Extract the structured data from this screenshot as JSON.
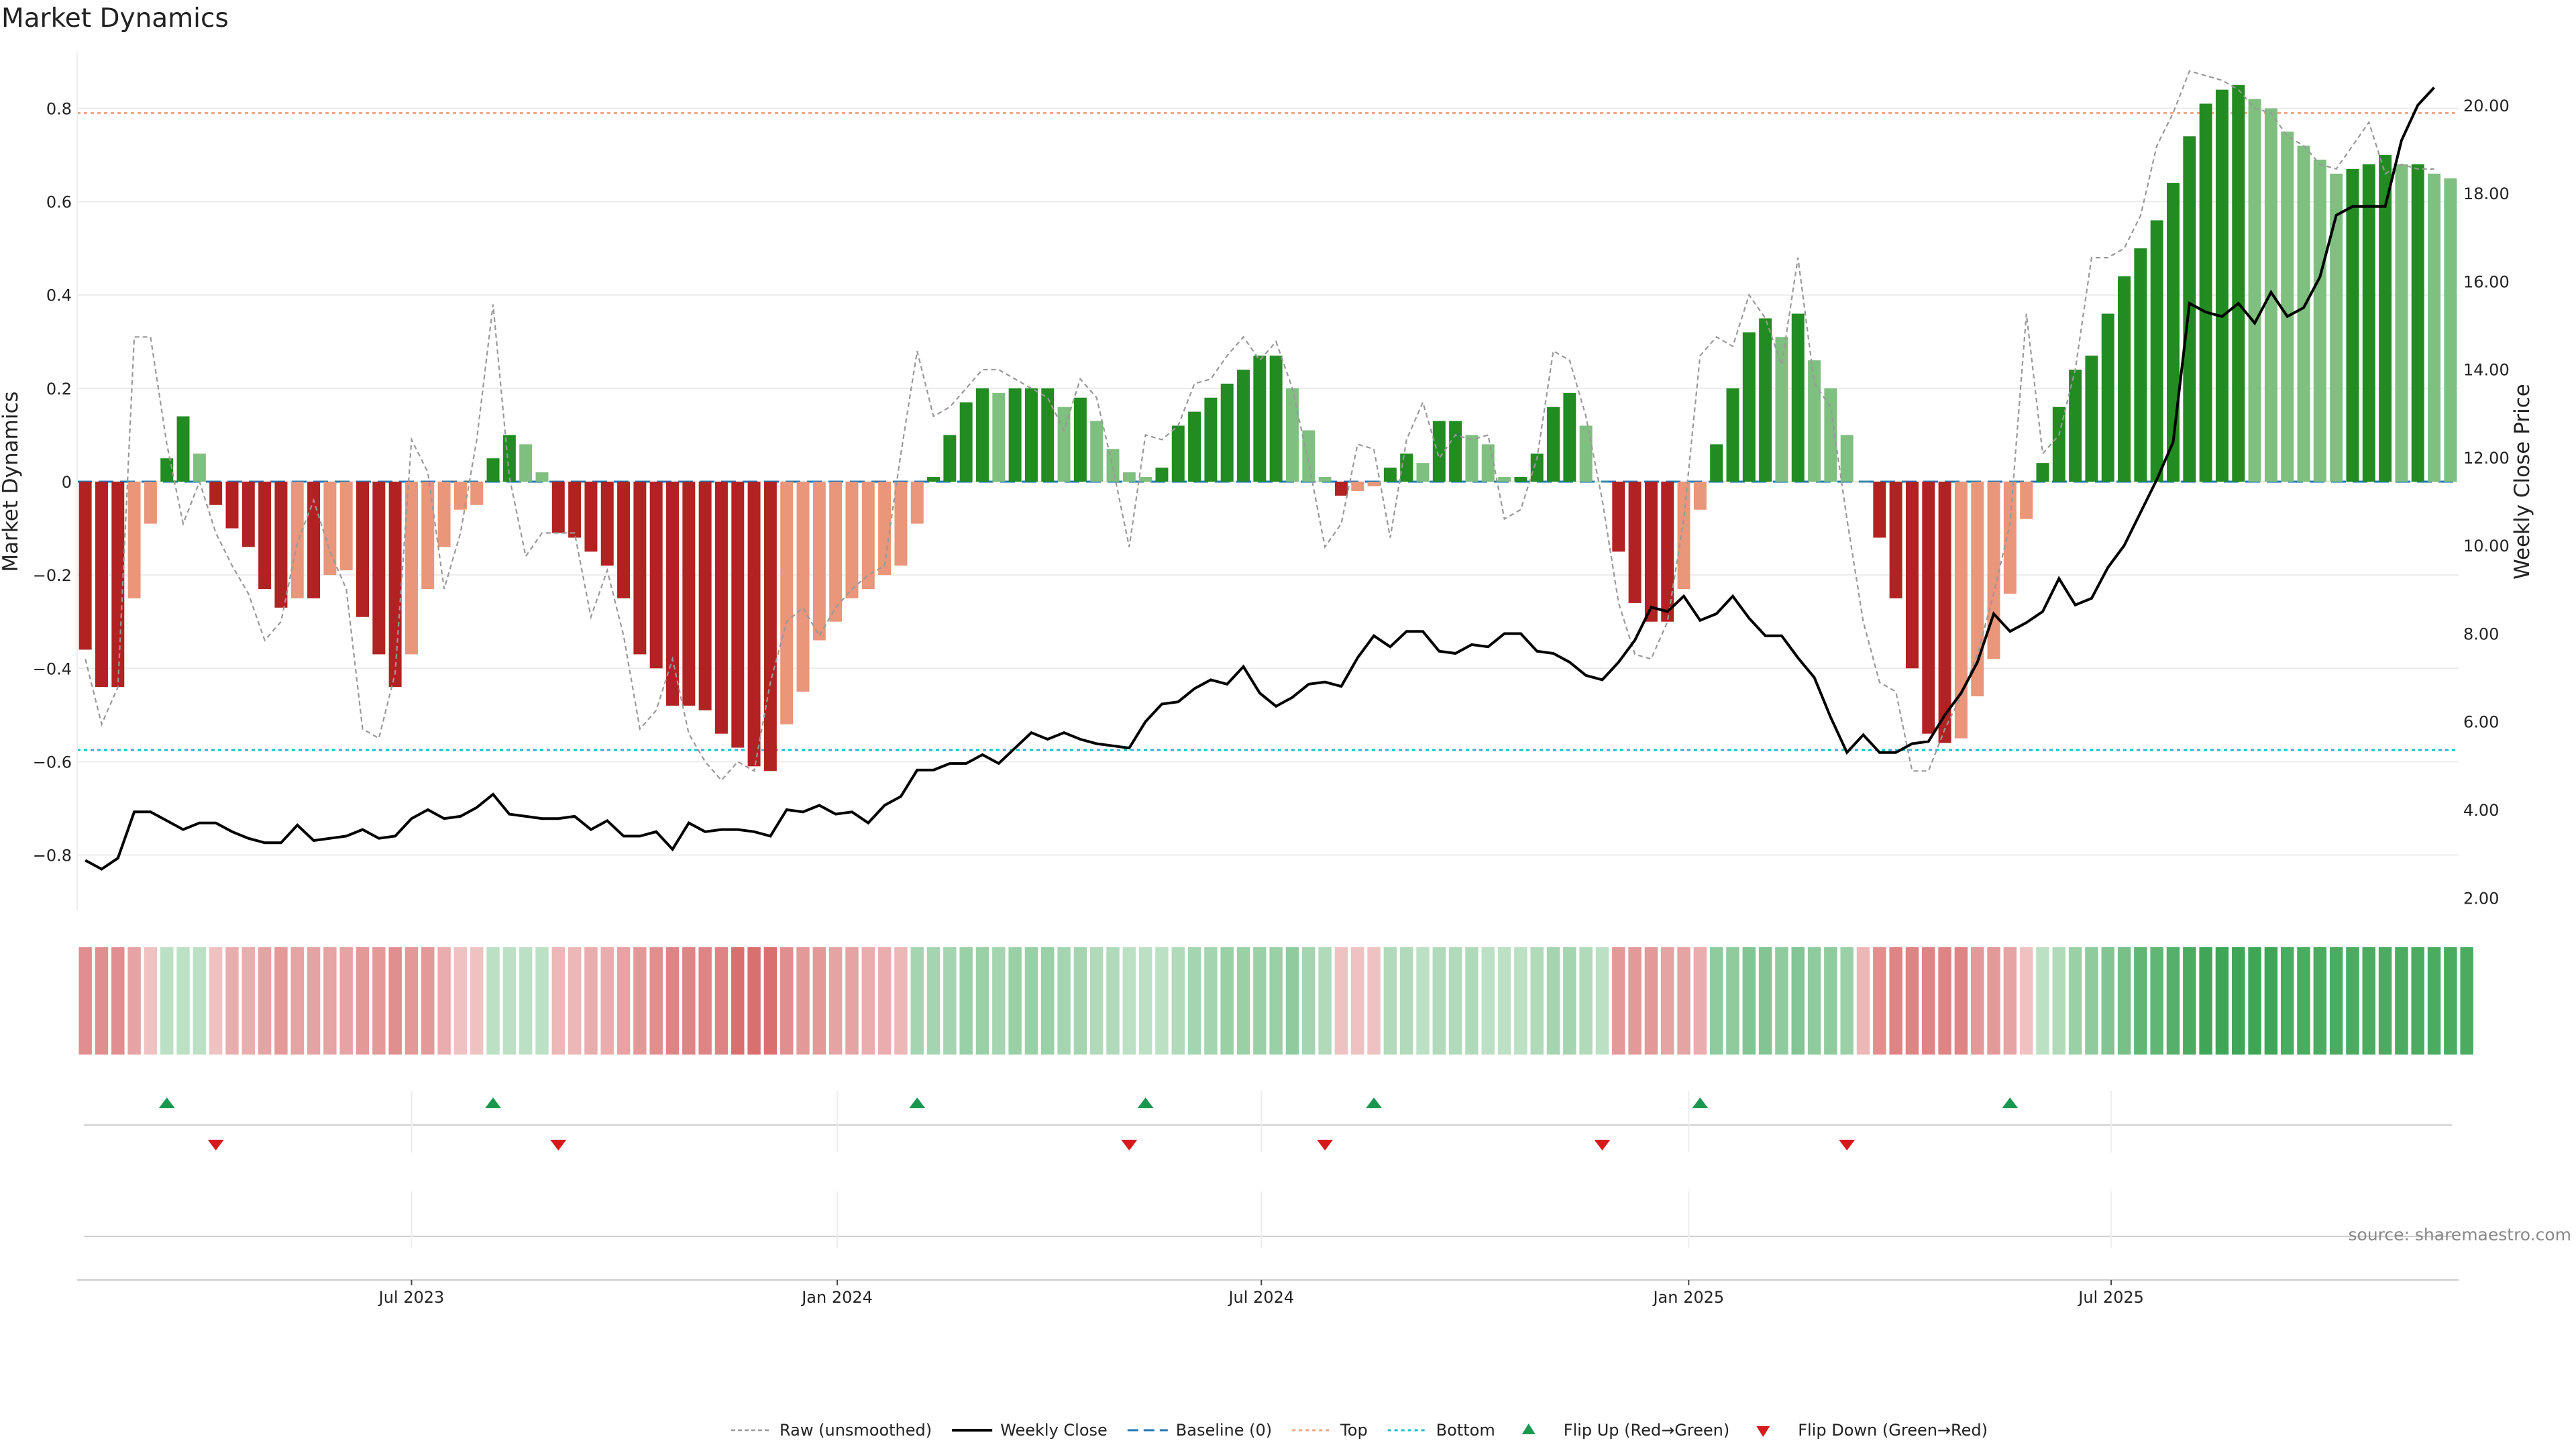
{
  "chart_data": {
    "type": "bar",
    "title": "Market Dynamics",
    "ylabel_left": "Market Dynamics",
    "ylabel_right": "Weekly Close Price",
    "ylim_left": [
      -0.92,
      0.92
    ],
    "ylim_right": [
      1.7,
      21.2
    ],
    "left_ticks": [
      {
        "value": 0.8,
        "label": "0.8"
      },
      {
        "value": 0.6,
        "label": "0.6"
      },
      {
        "value": 0.4,
        "label": "0.4"
      },
      {
        "value": 0.2,
        "label": "0.2"
      },
      {
        "value": 0,
        "label": "0"
      },
      {
        "value": -0.2,
        "label": "−0.2"
      },
      {
        "value": -0.4,
        "label": "−0.4"
      },
      {
        "value": -0.6,
        "label": "−0.6"
      },
      {
        "value": -0.8,
        "label": "−0.8"
      }
    ],
    "right_ticks": [
      {
        "value": 20,
        "label": "20.00"
      },
      {
        "value": 18,
        "label": "18.00"
      },
      {
        "value": 16,
        "label": "16.00"
      },
      {
        "value": 14,
        "label": "14.00"
      },
      {
        "value": 12,
        "label": "12.00"
      },
      {
        "value": 10,
        "label": "10.00"
      },
      {
        "value": 8,
        "label": "8.00"
      },
      {
        "value": 6,
        "label": "6.00"
      },
      {
        "value": 4,
        "label": "4.00"
      },
      {
        "value": 2,
        "label": "2.00"
      }
    ],
    "x_tick_labels": [
      {
        "week": 20.5,
        "label": "Jul 2023"
      },
      {
        "week": 46.6,
        "label": "Jan 2024"
      },
      {
        "week": 72.6,
        "label": "Jul 2024"
      },
      {
        "week": 98.8,
        "label": "Jan 2025"
      },
      {
        "week": 124.7,
        "label": "Jul 2025"
      }
    ],
    "top_level": 0.79,
    "bottom_level": -0.575,
    "baseline": 0,
    "bars": [
      -0.36,
      -0.44,
      -0.44,
      -0.25,
      -0.09,
      0.05,
      0.14,
      0.06,
      -0.05,
      -0.1,
      -0.14,
      -0.23,
      -0.27,
      -0.25,
      -0.25,
      -0.2,
      -0.19,
      -0.29,
      -0.37,
      -0.44,
      -0.37,
      -0.23,
      -0.14,
      -0.06,
      -0.05,
      0.05,
      0.1,
      0.08,
      0.02,
      -0.11,
      -0.12,
      -0.15,
      -0.18,
      -0.25,
      -0.37,
      -0.4,
      -0.48,
      -0.48,
      -0.49,
      -0.54,
      -0.57,
      -0.61,
      -0.62,
      -0.52,
      -0.45,
      -0.34,
      -0.3,
      -0.25,
      -0.23,
      -0.2,
      -0.18,
      -0.09,
      0.01,
      0.1,
      0.17,
      0.2,
      0.19,
      0.2,
      0.2,
      0.2,
      0.16,
      0.18,
      0.13,
      0.07,
      0.02,
      0.01,
      0.03,
      0.12,
      0.15,
      0.18,
      0.21,
      0.24,
      0.27,
      0.27,
      0.2,
      0.11,
      0.01,
      -0.03,
      -0.02,
      -0.01,
      0.03,
      0.06,
      0.04,
      0.13,
      0.13,
      0.1,
      0.08,
      0.01,
      0.01,
      0.06,
      0.16,
      0.19,
      0.12,
      0.0,
      -0.15,
      -0.26,
      -0.3,
      -0.3,
      -0.23,
      -0.06,
      0.08,
      0.2,
      0.32,
      0.35,
      0.31,
      0.36,
      0.26,
      0.2,
      0.1,
      0.0,
      -0.12,
      -0.25,
      -0.4,
      -0.54,
      -0.56,
      -0.55,
      -0.46,
      -0.38,
      -0.24,
      -0.08,
      0.04,
      0.16,
      0.24,
      0.27,
      0.36,
      0.44,
      0.5,
      0.56,
      0.64,
      0.74,
      0.81,
      0.84,
      0.85,
      0.82,
      0.8,
      0.75,
      0.72,
      0.69,
      0.66,
      0.67,
      0.68,
      0.7,
      0.68,
      0.68,
      0.66,
      0.65
    ],
    "raw": [
      -0.38,
      -0.52,
      -0.44,
      0.31,
      0.31,
      0.08,
      -0.09,
      0.0,
      -0.11,
      -0.18,
      -0.24,
      -0.34,
      -0.3,
      -0.13,
      -0.04,
      -0.15,
      -0.23,
      -0.53,
      -0.55,
      -0.41,
      0.09,
      0.02,
      -0.23,
      -0.11,
      0.09,
      0.38,
      0.01,
      -0.16,
      -0.11,
      -0.11,
      -0.11,
      -0.29,
      -0.19,
      -0.33,
      -0.53,
      -0.49,
      -0.38,
      -0.54,
      -0.6,
      -0.64,
      -0.6,
      -0.62,
      -0.43,
      -0.3,
      -0.27,
      -0.33,
      -0.27,
      -0.23,
      -0.2,
      -0.18,
      0.06,
      0.28,
      0.14,
      0.16,
      0.2,
      0.24,
      0.24,
      0.22,
      0.2,
      0.18,
      0.11,
      0.22,
      0.18,
      0.03,
      -0.14,
      0.1,
      0.09,
      0.12,
      0.21,
      0.22,
      0.27,
      0.31,
      0.26,
      0.3,
      0.2,
      0.04,
      -0.14,
      -0.09,
      0.08,
      0.07,
      -0.12,
      0.09,
      0.17,
      0.05,
      0.1,
      0.09,
      0.1,
      -0.08,
      -0.06,
      0.05,
      0.28,
      0.26,
      0.14,
      -0.04,
      -0.26,
      -0.37,
      -0.38,
      -0.3,
      -0.08,
      0.27,
      0.31,
      0.29,
      0.4,
      0.35,
      0.25,
      0.48,
      0.21,
      0.16,
      -0.08,
      -0.3,
      -0.43,
      -0.45,
      -0.62,
      -0.62,
      -0.53,
      -0.46,
      -0.37,
      -0.24,
      -0.09,
      0.36,
      0.06,
      0.1,
      0.24,
      0.48,
      0.48,
      0.5,
      0.57,
      0.72,
      0.79,
      0.88,
      0.87,
      0.86,
      0.84,
      0.8,
      0.79,
      0.74,
      0.72,
      0.68,
      0.67,
      0.72,
      0.77,
      0.66,
      0.68,
      0.67,
      0.67
    ],
    "weekly_close": [
      2.85,
      2.65,
      2.9,
      3.95,
      3.95,
      3.75,
      3.55,
      3.7,
      3.7,
      3.5,
      3.35,
      3.25,
      3.25,
      3.65,
      3.3,
      3.35,
      3.4,
      3.55,
      3.35,
      3.4,
      3.8,
      4.0,
      3.8,
      3.85,
      4.05,
      4.35,
      3.9,
      3.85,
      3.8,
      3.8,
      3.85,
      3.55,
      3.75,
      3.4,
      3.4,
      3.5,
      3.1,
      3.7,
      3.5,
      3.55,
      3.55,
      3.5,
      3.4,
      4.0,
      3.95,
      4.1,
      3.9,
      3.95,
      3.7,
      4.1,
      4.3,
      4.9,
      4.9,
      5.05,
      5.05,
      5.25,
      5.05,
      5.4,
      5.75,
      5.6,
      5.75,
      5.6,
      5.5,
      5.45,
      5.4,
      6.0,
      6.4,
      6.45,
      6.75,
      6.95,
      6.85,
      7.25,
      6.65,
      6.35,
      6.55,
      6.85,
      6.9,
      6.8,
      7.45,
      7.95,
      7.7,
      8.05,
      8.05,
      7.6,
      7.55,
      7.75,
      7.7,
      8.0,
      8.0,
      7.6,
      7.55,
      7.35,
      7.05,
      6.95,
      7.35,
      7.85,
      8.6,
      8.5,
      8.85,
      8.3,
      8.45,
      8.85,
      8.35,
      7.95,
      7.95,
      7.45,
      7.0,
      6.1,
      5.3,
      5.7,
      5.3,
      5.3,
      5.5,
      5.55,
      6.15,
      6.65,
      7.35,
      8.45,
      8.05,
      8.25,
      8.5,
      9.25,
      8.65,
      8.8,
      9.5,
      10.0,
      10.75,
      11.5,
      12.35,
      15.5,
      15.3,
      15.2,
      15.5,
      15.05,
      15.75,
      15.2,
      15.4,
      16.1,
      17.5,
      17.7,
      17.7,
      17.7,
      19.2,
      20.0,
      20.4
    ],
    "state_strip": [
      -0.55,
      -0.55,
      -0.55,
      -0.45,
      -0.3,
      0.3,
      0.3,
      0.3,
      -0.3,
      -0.4,
      -0.4,
      -0.45,
      -0.5,
      -0.45,
      -0.45,
      -0.45,
      -0.45,
      -0.5,
      -0.5,
      -0.55,
      -0.5,
      -0.5,
      -0.4,
      -0.3,
      -0.3,
      0.3,
      0.3,
      0.3,
      0.3,
      -0.35,
      -0.35,
      -0.4,
      -0.4,
      -0.45,
      -0.5,
      -0.55,
      -0.6,
      -0.6,
      -0.6,
      -0.6,
      -0.7,
      -0.7,
      -0.7,
      -0.55,
      -0.5,
      -0.5,
      -0.45,
      -0.45,
      -0.4,
      -0.4,
      -0.35,
      0.4,
      0.4,
      0.4,
      0.45,
      0.45,
      0.4,
      0.45,
      0.45,
      0.45,
      0.4,
      0.4,
      0.35,
      0.35,
      0.3,
      0.3,
      0.3,
      0.35,
      0.4,
      0.4,
      0.45,
      0.45,
      0.45,
      0.45,
      0.5,
      0.4,
      0.35,
      -0.3,
      -0.3,
      -0.3,
      0.35,
      0.35,
      0.3,
      0.35,
      0.35,
      0.35,
      0.3,
      0.3,
      0.3,
      0.35,
      0.4,
      0.4,
      0.35,
      0.3,
      -0.5,
      -0.5,
      -0.5,
      -0.45,
      -0.45,
      -0.4,
      0.5,
      0.5,
      0.55,
      0.55,
      0.5,
      0.55,
      0.5,
      0.5,
      0.45,
      -0.35,
      -0.55,
      -0.6,
      -0.6,
      -0.6,
      -0.6,
      -0.6,
      -0.5,
      -0.5,
      -0.45,
      -0.3,
      0.3,
      0.35,
      0.45,
      0.5,
      0.55,
      0.6,
      0.7,
      0.7,
      0.75,
      0.8,
      0.85,
      0.85,
      0.85,
      0.85,
      0.85,
      0.8,
      0.8,
      0.8,
      0.8,
      0.8,
      0.8,
      0.8,
      0.8,
      0.8,
      0.8,
      0.8,
      0.8
    ],
    "flip_up_weeks": [
      5.5,
      25.5,
      51.5,
      65.5,
      79.5,
      99.5,
      118.5
    ],
    "flip_down_weeks": [
      8.5,
      29.5,
      64.5,
      76.5,
      93.5,
      108.5
    ],
    "colors": {
      "strong_red": "#b22222",
      "light_red": "#e9967a",
      "strong_green": "#228b22",
      "light_green": "#7fbf7f",
      "raw_line": "#999999",
      "close_line": "#000000",
      "baseline": "#1f77b4",
      "top": "#f4a582",
      "bottom": "#17becf",
      "flip_up": "#1a9850",
      "flip_down": "#d7191c"
    },
    "legend": [
      {
        "key": "raw",
        "label": "Raw (unsmoothed)"
      },
      {
        "key": "close",
        "label": "Weekly Close"
      },
      {
        "key": "baseline",
        "label": "Baseline (0)"
      },
      {
        "key": "top",
        "label": "Top"
      },
      {
        "key": "bottom",
        "label": "Bottom"
      },
      {
        "key": "flip_up",
        "label": "Flip Up (Red→Green)"
      },
      {
        "key": "flip_down",
        "label": "Flip Down (Green→Red)"
      }
    ],
    "source": "source: sharemaestro.com"
  }
}
